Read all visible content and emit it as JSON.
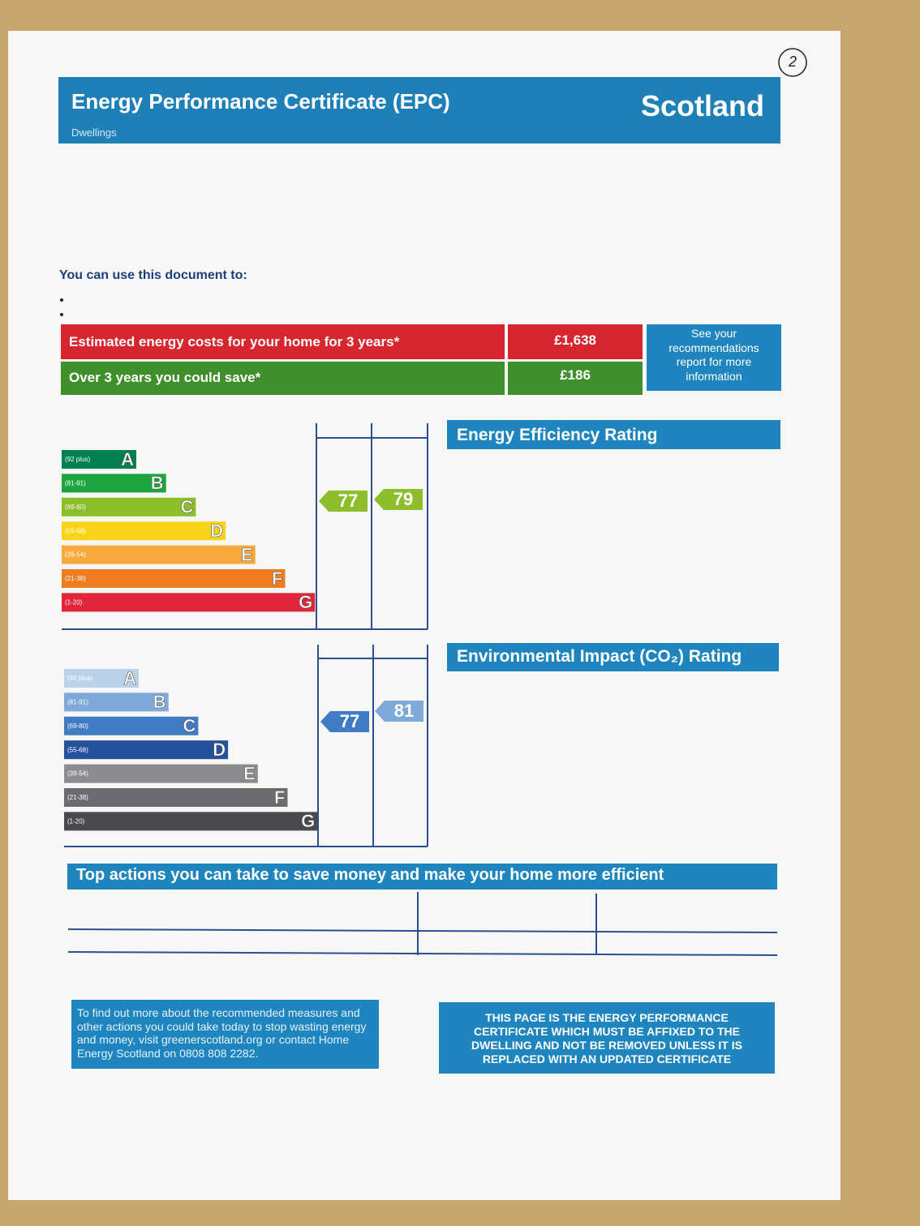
{
  "header": {
    "title": "Energy Performance Certificate (EPC)",
    "subtitle": "Dwellings",
    "region": "Scotland"
  },
  "page_number": "2",
  "intro": "You can use this document to:",
  "costs": {
    "rows": [
      {
        "label": "Estimated energy costs for your home for 3 years*",
        "value": "£1,638"
      },
      {
        "label": "Over 3 years you could save*",
        "value": "£186"
      }
    ],
    "note": "See your recommendations report for more information"
  },
  "energy_rating": {
    "title": "Energy Efficiency Rating",
    "bands": [
      {
        "range": "(92 plus)",
        "letter": "A"
      },
      {
        "range": "(81-91)",
        "letter": "B"
      },
      {
        "range": "(69-80)",
        "letter": "C"
      },
      {
        "range": "(55-68)",
        "letter": "D"
      },
      {
        "range": "(39-54)",
        "letter": "E"
      },
      {
        "range": "(21-38)",
        "letter": "F"
      },
      {
        "range": "(1-20)",
        "letter": "G"
      }
    ],
    "current": 77,
    "potential": 79
  },
  "environmental_rating": {
    "title": "Environmental Impact (CO₂) Rating",
    "bands": [
      {
        "range": "(92 plus)",
        "letter": "A"
      },
      {
        "range": "(81-91)",
        "letter": "B"
      },
      {
        "range": "(69-80)",
        "letter": "C"
      },
      {
        "range": "(55-68)",
        "letter": "D"
      },
      {
        "range": "(39-54)",
        "letter": "E"
      },
      {
        "range": "(21-38)",
        "letter": "F"
      },
      {
        "range": "(1-20)",
        "letter": "G"
      }
    ],
    "current": 77,
    "potential": 81
  },
  "top_actions": {
    "title": "Top actions you can take to save money and make your home more efficient"
  },
  "footer": {
    "advice": "To find out more about the recommended measures and other actions you could take today to stop wasting energy and money, visit greenerscotland.org or contact Home Energy Scotland on 0808 808 2282.",
    "notice": "THIS PAGE IS THE ENERGY PERFORMANCE CERTIFICATE WHICH MUST BE AFFIXED TO THE DWELLING AND NOT BE REMOVED UNLESS IT IS REPLACED WITH AN UPDATED CERTIFICATE"
  }
}
